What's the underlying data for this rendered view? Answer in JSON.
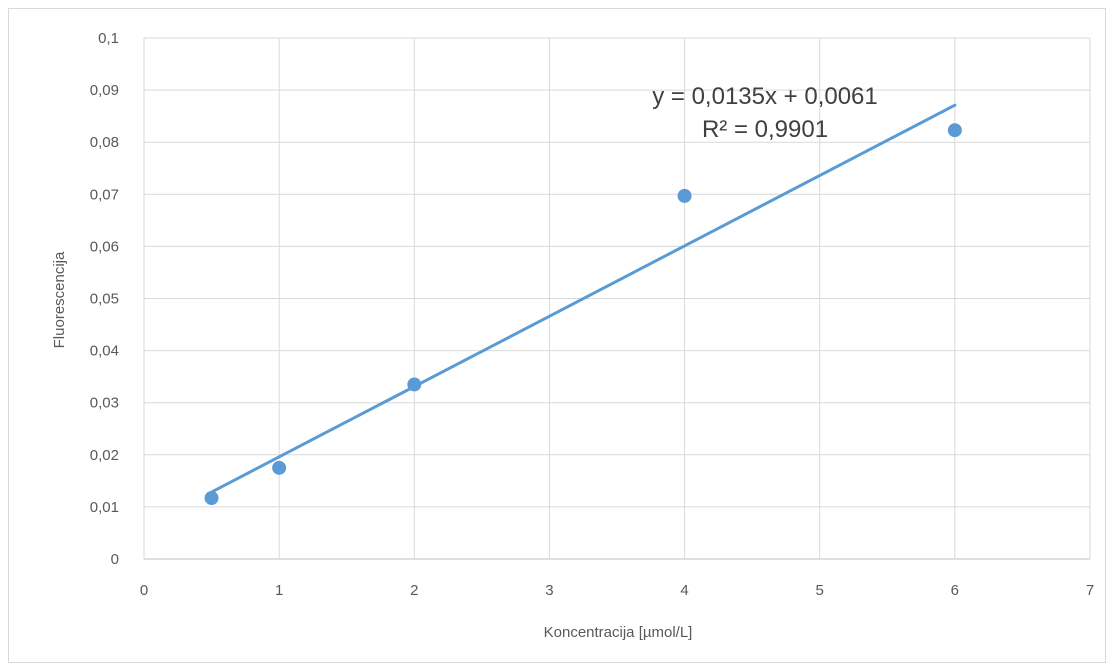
{
  "chart_data": {
    "type": "scatter",
    "title": "",
    "xlabel": "Koncentracija [µmol/L]",
    "ylabel": "Fluorescencija",
    "xlim": [
      0,
      7
    ],
    "ylim": [
      0,
      0.1
    ],
    "x_ticks": [
      "0",
      "1",
      "2",
      "3",
      "4",
      "5",
      "6",
      "7"
    ],
    "y_ticks": [
      "0",
      "0,01",
      "0,02",
      "0,03",
      "0,04",
      "0,05",
      "0,06",
      "0,07",
      "0,08",
      "0,09",
      "0,1"
    ],
    "grid": true,
    "legend": "none",
    "series": [
      {
        "color": "#5b9bd5",
        "points": [
          {
            "x": 0.5,
            "y": 0.0117
          },
          {
            "x": 1.0,
            "y": 0.0175
          },
          {
            "x": 2.0,
            "y": 0.0335
          },
          {
            "x": 4.0,
            "y": 0.0697
          },
          {
            "x": 6.0,
            "y": 0.0823
          }
        ]
      }
    ],
    "trendline": {
      "type": "linear",
      "slope": 0.0135,
      "intercept": 0.0061,
      "x_range": [
        0.5,
        6.0
      ],
      "color": "#5b9bd5",
      "equation_label": "y = 0,0135x + 0,0061",
      "r2_label": "R² = 0,9901"
    }
  }
}
